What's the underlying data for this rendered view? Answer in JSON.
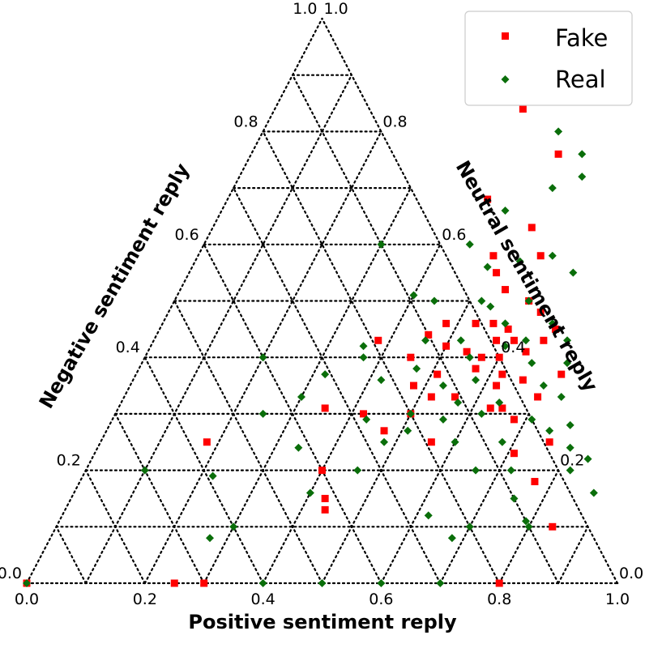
{
  "chart_data": {
    "type": "scatter",
    "subtype": "ternary",
    "axes": {
      "bottom": {
        "label": "Positive sentiment reply",
        "ticks": [
          "0.0",
          "0.2",
          "0.4",
          "0.6",
          "0.8",
          "1.0"
        ]
      },
      "left": {
        "label": "Negative sentiment reply",
        "ticks": [
          "1.0",
          "0.8",
          "0.6",
          "0.4",
          "0.2",
          "0.0"
        ]
      },
      "right": {
        "label": "Neutral sentiment reply",
        "ticks": [
          "0.0",
          "0.2",
          "0.4",
          "0.6",
          "0.8",
          "1.0"
        ]
      }
    },
    "grid": true,
    "grid_step": 0.1,
    "legend": {
      "position": "top-right"
    },
    "series": [
      {
        "name": "Fake",
        "color": "#ff0000",
        "marker": "square",
        "points": [
          [
            0.0,
            0.0
          ],
          [
            0.25,
            0.0
          ],
          [
            0.3,
            0.0
          ],
          [
            0.8,
            0.0
          ],
          [
            0.18,
            0.25
          ],
          [
            0.4,
            0.2
          ],
          [
            0.43,
            0.15
          ],
          [
            0.44,
            0.13
          ],
          [
            0.56,
            0.25
          ],
          [
            0.48,
            0.35
          ],
          [
            0.5,
            0.3
          ],
          [
            0.52,
            0.33
          ],
          [
            0.57,
            0.4
          ],
          [
            0.62,
            0.37
          ],
          [
            0.66,
            0.36
          ],
          [
            0.7,
            0.33
          ],
          [
            0.63,
            0.48
          ],
          [
            0.67,
            0.45
          ],
          [
            0.56,
            0.46
          ],
          [
            0.46,
            0.44
          ],
          [
            0.42,
            0.3
          ],
          [
            0.47,
            0.27
          ],
          [
            0.58,
            0.43
          ],
          [
            0.61,
            0.43
          ],
          [
            0.64,
            0.41
          ],
          [
            0.55,
            0.52
          ],
          [
            0.6,
            0.5
          ],
          [
            0.54,
            0.63
          ],
          [
            0.58,
            0.58
          ],
          [
            0.72,
            0.37
          ],
          [
            0.76,
            0.25
          ],
          [
            0.84,
            0.1
          ],
          [
            0.42,
            0.84
          ],
          [
            0.52,
            0.76
          ],
          [
            0.44,
            0.68
          ],
          [
            0.5,
            0.58
          ],
          [
            0.52,
            0.55
          ],
          [
            0.48,
            0.46
          ],
          [
            0.53,
            0.46
          ],
          [
            0.62,
            0.35
          ],
          [
            0.65,
            0.31
          ],
          [
            0.68,
            0.29
          ],
          [
            0.77,
            0.18
          ],
          [
            0.35,
            0.31
          ],
          [
            0.38,
            0.43
          ],
          [
            0.45,
            0.4
          ],
          [
            0.6,
            0.4
          ],
          [
            0.51,
            0.37
          ],
          [
            0.57,
            0.38
          ],
          [
            0.59,
            0.45
          ],
          [
            0.5,
            0.42
          ],
          [
            0.54,
            0.41
          ],
          [
            0.63,
            0.31
          ],
          [
            0.71,
            0.23
          ],
          [
            0.56,
            0.33
          ],
          [
            0.66,
            0.43
          ]
        ]
      },
      {
        "name": "Real",
        "color": "#0a6e0a",
        "marker": "diamond",
        "points": [
          [
            0.0,
            0.0
          ],
          [
            0.5,
            0.0
          ],
          [
            0.6,
            0.0
          ],
          [
            0.4,
            0.0
          ],
          [
            0.7,
            0.0
          ],
          [
            0.3,
            0.1
          ],
          [
            0.7,
            0.1
          ],
          [
            0.8,
            0.1
          ],
          [
            0.5,
            1.0
          ],
          [
            0.2,
            0.4
          ],
          [
            0.1,
            0.2
          ],
          [
            0.3,
            0.6
          ],
          [
            0.42,
            0.88
          ],
          [
            0.5,
            0.8
          ],
          [
            0.56,
            0.76
          ],
          [
            0.58,
            0.72
          ],
          [
            0.54,
            0.7
          ],
          [
            0.48,
            0.66
          ],
          [
            0.45,
            0.6
          ],
          [
            0.5,
            0.56
          ],
          [
            0.55,
            0.57
          ],
          [
            0.6,
            0.58
          ],
          [
            0.65,
            0.55
          ],
          [
            0.6,
            0.5
          ],
          [
            0.58,
            0.46
          ],
          [
            0.52,
            0.5
          ],
          [
            0.46,
            0.43
          ],
          [
            0.52,
            0.43
          ],
          [
            0.6,
            0.42
          ],
          [
            0.66,
            0.39
          ],
          [
            0.7,
            0.35
          ],
          [
            0.74,
            0.33
          ],
          [
            0.78,
            0.28
          ],
          [
            0.84,
            0.22
          ],
          [
            0.88,
            0.16
          ],
          [
            0.68,
            0.25
          ],
          [
            0.62,
            0.3
          ],
          [
            0.57,
            0.32
          ],
          [
            0.5,
            0.3
          ],
          [
            0.42,
            0.36
          ],
          [
            0.36,
            0.42
          ],
          [
            0.32,
            0.37
          ],
          [
            0.3,
            0.33
          ],
          [
            0.25,
            0.3
          ],
          [
            0.22,
            0.19
          ],
          [
            0.27,
            0.08
          ],
          [
            0.34,
            0.24
          ],
          [
            0.4,
            0.16
          ],
          [
            0.46,
            0.2
          ],
          [
            0.51,
            0.27
          ],
          [
            0.55,
            0.4
          ],
          [
            0.63,
            0.43
          ],
          [
            0.66,
            0.46
          ],
          [
            0.7,
            0.43
          ],
          [
            0.72,
            0.39
          ],
          [
            0.64,
            0.32
          ],
          [
            0.6,
            0.25
          ],
          [
            0.66,
            0.2
          ],
          [
            0.72,
            0.2
          ],
          [
            0.75,
            0.15
          ],
          [
            0.79,
            0.11
          ],
          [
            0.62,
            0.12
          ],
          [
            0.68,
            0.08
          ],
          [
            0.54,
            0.49
          ],
          [
            0.44,
            0.5
          ],
          [
            0.4,
            0.51
          ],
          [
            0.37,
            0.4
          ],
          [
            0.47,
            0.38
          ],
          [
            0.53,
            0.35
          ],
          [
            0.56,
            0.29
          ],
          [
            0.58,
            0.36
          ],
          [
            0.48,
            0.25
          ],
          [
            0.43,
            0.29
          ],
          [
            0.71,
            0.29
          ],
          [
            0.75,
            0.27
          ],
          [
            0.8,
            0.24
          ],
          [
            0.82,
            0.2
          ]
        ]
      }
    ]
  }
}
